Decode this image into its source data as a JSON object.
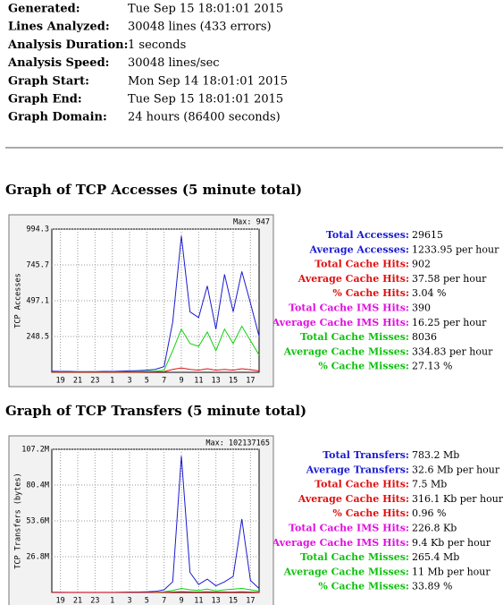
{
  "summary": {
    "rows": [
      [
        "Generated:",
        "Tue Sep 15 18:01:01 2015"
      ],
      [
        "Lines Analyzed:",
        "30048 lines (433 errors)"
      ],
      [
        "Analysis Duration:",
        "1 seconds"
      ],
      [
        "Analysis Speed:",
        "30048 lines/sec"
      ],
      [
        "Graph Start:",
        "Mon Sep 14 18:01:01 2015"
      ],
      [
        "Graph End:",
        "Tue Sep 15 18:01:01 2015"
      ],
      [
        "Graph Domain:",
        "24 hours (86400 seconds)"
      ]
    ]
  },
  "sections": [
    {
      "heading": "Graph of TCP Accesses (5 minute total)",
      "stats": [
        {
          "label": "Total Accesses:",
          "value": "29615",
          "color": "#1a1ad0"
        },
        {
          "label": "Average Accesses:",
          "value": "1233.95 per hour",
          "color": "#1a1ad0"
        },
        {
          "label": "Total Cache Hits:",
          "value": "902",
          "color": "#e01010"
        },
        {
          "label": "Average Cache Hits:",
          "value": "37.58 per hour",
          "color": "#e01010"
        },
        {
          "label": "% Cache Hits:",
          "value": "3.04 %",
          "color": "#e01010"
        },
        {
          "label": "Total Cache IMS Hits:",
          "value": "390",
          "color": "#e010e0"
        },
        {
          "label": "Average Cache IMS Hits:",
          "value": "16.25 per hour",
          "color": "#e010e0"
        },
        {
          "label": "Total Cache Misses:",
          "value": "8036",
          "color": "#10c010"
        },
        {
          "label": "Average Cache Misses:",
          "value": "334.83 per hour",
          "color": "#10c010"
        },
        {
          "label": "% Cache Misses:",
          "value": "27.13 %",
          "color": "#10c010"
        }
      ]
    },
    {
      "heading": "Graph of TCP Transfers (5 minute total)",
      "stats": [
        {
          "label": "Total Transfers:",
          "value": "783.2 Mb",
          "color": "#1a1ad0"
        },
        {
          "label": "Average Transfers:",
          "value": "32.6 Mb per hour",
          "color": "#1a1ad0"
        },
        {
          "label": "Total Cache Hits:",
          "value": "7.5 Mb",
          "color": "#e01010"
        },
        {
          "label": "Average Cache Hits:",
          "value": "316.1 Kb per hour",
          "color": "#e01010"
        },
        {
          "label": "% Cache Hits:",
          "value": "0.96 %",
          "color": "#e01010"
        },
        {
          "label": "Total Cache IMS Hits:",
          "value": "226.8 Kb",
          "color": "#e010e0"
        },
        {
          "label": "Average Cache IMS Hits:",
          "value": "9.4 Kb per hour",
          "color": "#e010e0"
        },
        {
          "label": "Total Cache Misses:",
          "value": "265.4 Mb",
          "color": "#10c010"
        },
        {
          "label": "Average Cache Misses:",
          "value": "11 Mb per hour",
          "color": "#10c010"
        },
        {
          "label": "% Cache Misses:",
          "value": "33.89 %",
          "color": "#10c010"
        }
      ]
    }
  ],
  "chart_data": [
    {
      "type": "line",
      "y_label": "TCP Accesses",
      "annotation": "Max: 947",
      "x": [
        0,
        1,
        2,
        3,
        4,
        5,
        6,
        7,
        8,
        9,
        10,
        11,
        12,
        13,
        14,
        15,
        16,
        17,
        18,
        19,
        20,
        21,
        22,
        23,
        24
      ],
      "xlim": [
        0,
        24
      ],
      "xticks": [
        {
          "value": 1,
          "label": "19"
        },
        {
          "value": 3,
          "label": "21"
        },
        {
          "value": 5,
          "label": "23"
        },
        {
          "value": 7,
          "label": "1"
        },
        {
          "value": 9,
          "label": "3"
        },
        {
          "value": 11,
          "label": "5"
        },
        {
          "value": 13,
          "label": "7"
        },
        {
          "value": 15,
          "label": "9"
        },
        {
          "value": 17,
          "label": "11"
        },
        {
          "value": 19,
          "label": "13"
        },
        {
          "value": 21,
          "label": "15"
        },
        {
          "value": 23,
          "label": "17"
        }
      ],
      "ylim": [
        0,
        994.3
      ],
      "yticks": [
        248.5,
        497.1,
        745.7,
        994.3
      ],
      "grid": true,
      "series": [
        {
          "color": "#1a1ad0",
          "values": [
            8,
            6,
            6,
            5,
            5,
            5,
            6,
            6,
            8,
            10,
            12,
            15,
            20,
            40,
            350,
            947,
            420,
            380,
            600,
            300,
            680,
            420,
            700,
            480,
            250
          ]
        },
        {
          "color": "#10d010",
          "values": [
            3,
            2,
            2,
            2,
            2,
            2,
            2,
            3,
            3,
            4,
            5,
            6,
            8,
            15,
            150,
            300,
            200,
            180,
            280,
            150,
            300,
            200,
            320,
            220,
            120
          ]
        },
        {
          "color": "#e01010",
          "values": [
            1,
            1,
            1,
            1,
            1,
            1,
            1,
            1,
            1,
            1,
            1,
            2,
            3,
            5,
            20,
            30,
            20,
            15,
            25,
            15,
            20,
            15,
            25,
            18,
            10
          ]
        }
      ]
    },
    {
      "type": "line",
      "y_label": "TCP Transfers (bytes)",
      "annotation": "Max: 102137165",
      "x": [
        0,
        1,
        2,
        3,
        4,
        5,
        6,
        7,
        8,
        9,
        10,
        11,
        12,
        13,
        14,
        15,
        16,
        17,
        18,
        19,
        20,
        21,
        22,
        23,
        24
      ],
      "xlim": [
        0,
        24
      ],
      "xticks": [
        {
          "value": 1,
          "label": "19"
        },
        {
          "value": 3,
          "label": "21"
        },
        {
          "value": 5,
          "label": "23"
        },
        {
          "value": 7,
          "label": "1"
        },
        {
          "value": 9,
          "label": "3"
        },
        {
          "value": 11,
          "label": "5"
        },
        {
          "value": 13,
          "label": "7"
        },
        {
          "value": 15,
          "label": "9"
        },
        {
          "value": 17,
          "label": "11"
        },
        {
          "value": 19,
          "label": "13"
        },
        {
          "value": 21,
          "label": "15"
        },
        {
          "value": 23,
          "label": "17"
        }
      ],
      "ylim": [
        0,
        107200000
      ],
      "yticks": [
        {
          "value": 26800000,
          "label": "26.8M"
        },
        {
          "value": 53600000,
          "label": "53.6M"
        },
        {
          "value": 80400000,
          "label": "80.4M"
        },
        {
          "value": 107200000,
          "label": "107.2M"
        }
      ],
      "grid": true,
      "series": [
        {
          "color": "#1a1ad0",
          "values": [
            200000,
            150000,
            100000,
            100000,
            100000,
            100000,
            100000,
            100000,
            200000,
            300000,
            300000,
            500000,
            800000,
            2000000,
            8000000,
            102137165,
            15000000,
            6000000,
            10000000,
            5000000,
            8000000,
            12000000,
            55000000,
            9000000,
            3000000
          ]
        },
        {
          "color": "#10d010",
          "values": [
            50000,
            40000,
            30000,
            30000,
            30000,
            30000,
            30000,
            30000,
            50000,
            60000,
            60000,
            100000,
            200000,
            500000,
            1500000,
            3000000,
            2000000,
            1500000,
            2500000,
            1200000,
            2000000,
            2500000,
            3000000,
            2000000,
            1000000
          ]
        },
        {
          "color": "#e01010",
          "values": [
            10000,
            10000,
            10000,
            10000,
            10000,
            10000,
            10000,
            10000,
            10000,
            10000,
            10000,
            20000,
            30000,
            60000,
            300000,
            600000,
            400000,
            300000,
            500000,
            300000,
            400000,
            300000,
            500000,
            300000,
            200000
          ]
        }
      ]
    }
  ]
}
